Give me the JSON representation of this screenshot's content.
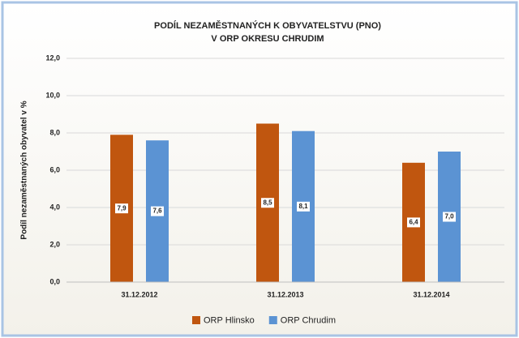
{
  "chart_data": {
    "type": "bar",
    "title": [
      "PODÍL NEZAMĚSTNANÝCH K OBYVATELSTVU (PNO)",
      "V ORP OKRESU CHRUDIM"
    ],
    "y_label": "Podíl nezaměstnaných obyvatel v %",
    "categories": [
      "31.12.2012",
      "31.12.2013",
      "31.12.2014"
    ],
    "series": [
      {
        "name": "ORP Hlinsko",
        "color": "#c0560f",
        "values": [
          7.9,
          8.5,
          6.4
        ],
        "value_labels": [
          "7,9",
          "8,5",
          "6,4"
        ]
      },
      {
        "name": "ORP Chrudim",
        "color": "#5b93d3",
        "values": [
          7.6,
          8.1,
          7.0
        ],
        "value_labels": [
          "7,6",
          "8,1",
          "7,0"
        ]
      }
    ],
    "ylim": [
      0,
      12
    ],
    "yticks": [
      {
        "value": 0,
        "label": "0,0"
      },
      {
        "value": 2,
        "label": "2,0"
      },
      {
        "value": 4,
        "label": "4,0"
      },
      {
        "value": 6,
        "label": "6,0"
      },
      {
        "value": 8,
        "label": "8,0"
      },
      {
        "value": 10,
        "label": "10,0"
      },
      {
        "value": 12,
        "label": "12,0"
      }
    ],
    "grid": true,
    "legend": "bottom"
  }
}
